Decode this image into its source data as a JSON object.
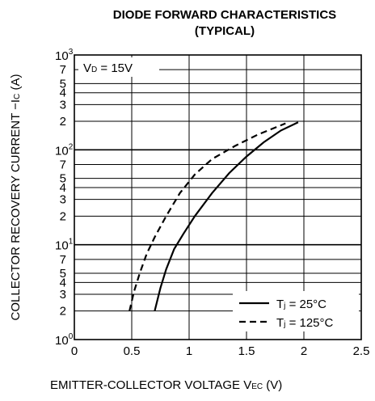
{
  "chart_data": {
    "type": "line",
    "title": "DIODE FORWARD CHARACTERISTICS",
    "subtitle": "(TYPICAL)",
    "xlabel": "EMITTER-COLLECTOR VOLTAGE  V",
    "xlabel_sub": "EC",
    "xlabel_unit": " (V)",
    "ylabel": "COLLECTOR RECOVERY CURRENT  −I",
    "ylabel_sub": "C",
    "ylabel_unit": " (A)",
    "annotation": "V",
    "annotation_sub": "D",
    "annotation_rest": " = 15V",
    "xlim": [
      0,
      2.5
    ],
    "ylim": [
      1,
      1000
    ],
    "yscale": "log",
    "grid": true,
    "legend_position": "bottom-right",
    "x_ticks": [
      "0",
      "0.5",
      "1",
      "1.5",
      "2",
      "2.5"
    ],
    "x_tick_values": [
      0,
      0.5,
      1,
      1.5,
      2,
      2.5
    ],
    "y_decade_labels": [
      {
        "base": "10",
        "exp": "0"
      },
      {
        "base": "10",
        "exp": "1"
      },
      {
        "base": "10",
        "exp": "2"
      },
      {
        "base": "10",
        "exp": "3"
      }
    ],
    "y_minor_labels": [
      "2",
      "3",
      "4",
      "5",
      "7"
    ],
    "series": [
      {
        "name": "T",
        "name_sub": "j",
        "name_rest": " = 25°C",
        "style": "solid",
        "x": [
          0.7,
          0.75,
          0.8,
          0.87,
          0.95,
          1.05,
          1.2,
          1.35,
          1.5,
          1.65,
          1.8,
          1.95
        ],
        "y": [
          2,
          3.5,
          5.5,
          9,
          13,
          20,
          35,
          57,
          85,
          120,
          160,
          195
        ]
      },
      {
        "name": "T",
        "name_sub": "j",
        "name_rest": " = 125°C",
        "style": "dashed",
        "x": [
          0.48,
          0.52,
          0.57,
          0.63,
          0.7,
          0.8,
          0.92,
          1.05,
          1.2,
          1.4,
          1.6,
          1.84
        ],
        "y": [
          2,
          3.2,
          5,
          8,
          12,
          20,
          35,
          55,
          80,
          110,
          145,
          190
        ]
      }
    ]
  }
}
